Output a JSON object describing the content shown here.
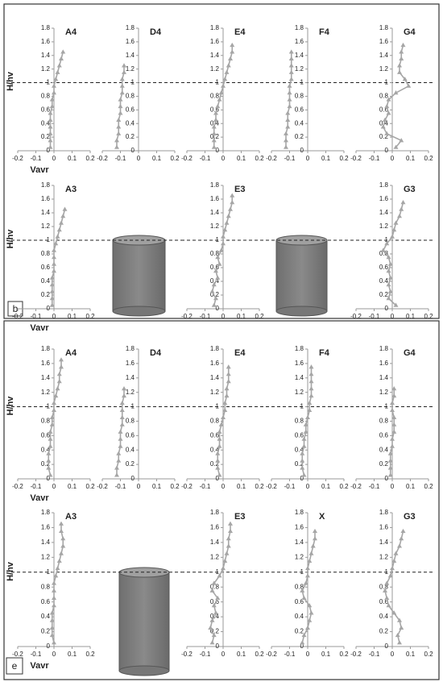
{
  "panel_labels": [
    "b",
    "e"
  ],
  "chart_data": [
    {
      "type": "line",
      "title": "A4",
      "xlabel": "Vavr",
      "ylabel": "H/hv",
      "xlim": [
        -0.2,
        0.2
      ],
      "ylim": [
        0,
        1.8
      ],
      "xticks": [
        -0.2,
        -0.1,
        0,
        0.1,
        0.2
      ],
      "yticks": [
        0,
        0.2,
        0.4,
        0.6,
        0.8,
        1,
        1.2,
        1.4,
        1.6,
        1.8
      ],
      "hline": 1,
      "series": [
        {
          "color": "#a6a6a6",
          "x": [
            -0.02,
            -0.02,
            -0.02,
            -0.02,
            -0.02,
            -0.02,
            -0.01,
            -0.01,
            0,
            0,
            0.01,
            0.02,
            0.03,
            0.04,
            0.05
          ],
          "y": [
            0.05,
            0.15,
            0.25,
            0.35,
            0.45,
            0.55,
            0.65,
            0.75,
            0.85,
            0.95,
            1.05,
            1.15,
            1.25,
            1.35,
            1.45
          ]
        }
      ]
    },
    {
      "type": "line",
      "title": "D4",
      "xlim": [
        -0.2,
        0.2
      ],
      "ylim": [
        0,
        1.8
      ],
      "xticks": [
        -0.2,
        -0.1,
        0,
        0.1,
        0.2
      ],
      "yticks": [
        0,
        0.2,
        0.4,
        0.6,
        0.8,
        1,
        1.2,
        1.4,
        1.6,
        1.8
      ],
      "hline": 1,
      "series": [
        {
          "color": "#a6a6a6",
          "x": [
            -0.12,
            -0.12,
            -0.11,
            -0.11,
            -0.11,
            -0.1,
            -0.1,
            -0.1,
            -0.09,
            -0.09,
            -0.09,
            -0.08,
            -0.08
          ],
          "y": [
            0.05,
            0.15,
            0.25,
            0.35,
            0.45,
            0.55,
            0.65,
            0.75,
            0.85,
            0.95,
            1.05,
            1.15,
            1.25
          ]
        }
      ]
    },
    {
      "type": "line",
      "title": "E4",
      "xlim": [
        -0.2,
        0.2
      ],
      "ylim": [
        0,
        1.8
      ],
      "xticks": [
        -0.2,
        -0.1,
        0,
        0.1,
        0.2
      ],
      "yticks": [
        0,
        0.2,
        0.4,
        0.6,
        0.8,
        1,
        1.2,
        1.4,
        1.6,
        1.8
      ],
      "hline": 1,
      "series": [
        {
          "color": "#a6a6a6",
          "x": [
            -0.05,
            -0.05,
            -0.05,
            -0.05,
            -0.04,
            -0.04,
            -0.03,
            -0.02,
            -0.01,
            0,
            0.01,
            0.02,
            0.03,
            0.04,
            0.05,
            0.05
          ],
          "y": [
            0.05,
            0.15,
            0.25,
            0.35,
            0.45,
            0.55,
            0.65,
            0.75,
            0.85,
            0.95,
            1.05,
            1.15,
            1.25,
            1.35,
            1.45,
            1.55
          ]
        }
      ]
    },
    {
      "type": "line",
      "title": "F4",
      "xlim": [
        -0.2,
        0.2
      ],
      "ylim": [
        0,
        1.8
      ],
      "xticks": [
        -0.2,
        -0.1,
        0,
        0.1,
        0.2
      ],
      "yticks": [
        0,
        0.2,
        0.4,
        0.6,
        0.8,
        1,
        1.2,
        1.4,
        1.6,
        1.8
      ],
      "hline": 1,
      "series": [
        {
          "color": "#a6a6a6",
          "x": [
            -0.12,
            -0.12,
            -0.12,
            -0.11,
            -0.11,
            -0.11,
            -0.1,
            -0.1,
            -0.1,
            -0.1,
            -0.09,
            -0.09,
            -0.09,
            -0.09,
            -0.09
          ],
          "y": [
            0.05,
            0.15,
            0.25,
            0.35,
            0.45,
            0.55,
            0.65,
            0.75,
            0.85,
            0.95,
            1.05,
            1.15,
            1.25,
            1.35,
            1.45
          ]
        }
      ]
    },
    {
      "type": "line",
      "title": "G4",
      "xlim": [
        -0.2,
        0.2
      ],
      "ylim": [
        0,
        1.8
      ],
      "xticks": [
        -0.2,
        -0.1,
        0,
        0.1,
        0.2
      ],
      "yticks": [
        0,
        0.2,
        0.4,
        0.6,
        0.8,
        1,
        1.2,
        1.4,
        1.6,
        1.8
      ],
      "hline": 1,
      "series": [
        {
          "color": "#a6a6a6",
          "x": [
            0.02,
            0.05,
            -0.03,
            -0.05,
            -0.04,
            -0.02,
            -0.03,
            -0.02,
            0.02,
            0.09,
            0.07,
            0.04,
            0.04,
            0.05,
            0.05,
            0.06
          ],
          "y": [
            0.05,
            0.15,
            0.25,
            0.35,
            0.45,
            0.55,
            0.65,
            0.75,
            0.85,
            0.95,
            1.05,
            1.15,
            1.25,
            1.35,
            1.45,
            1.55
          ]
        }
      ]
    },
    {
      "type": "line",
      "title": "A3",
      "xlabel": "Vavr",
      "ylabel": "H/hv",
      "xlim": [
        -0.2,
        0.2
      ],
      "ylim": [
        0,
        1.8
      ],
      "xticks": [
        -0.2,
        -0.1,
        0,
        0.1,
        0.2
      ],
      "yticks": [
        0,
        0.2,
        0.4,
        0.6,
        0.8,
        1,
        1.2,
        1.4,
        1.6,
        1.8
      ],
      "hline": 1,
      "series": [
        {
          "color": "#a6a6a6",
          "x": [
            -0.01,
            -0.01,
            -0.01,
            -0.01,
            -0.01,
            0,
            0,
            0,
            0,
            0.01,
            0.02,
            0.03,
            0.04,
            0.05,
            0.06
          ],
          "y": [
            0.05,
            0.15,
            0.25,
            0.35,
            0.45,
            0.55,
            0.65,
            0.75,
            0.85,
            0.95,
            1.05,
            1.15,
            1.25,
            1.35,
            1.45
          ]
        }
      ]
    },
    {
      "type": "line",
      "title": "E3",
      "xlim": [
        -0.2,
        0.2
      ],
      "ylim": [
        0,
        1.8
      ],
      "xticks": [
        -0.2,
        -0.1,
        0,
        0.1,
        0.2
      ],
      "yticks": [
        0,
        0.2,
        0.4,
        0.6,
        0.8,
        1,
        1.2,
        1.4,
        1.6,
        1.8
      ],
      "hline": 1,
      "series": [
        {
          "color": "#a6a6a6",
          "x": [
            -0.05,
            -0.04,
            -0.06,
            -0.05,
            -0.03,
            -0.04,
            -0.02,
            -0.03,
            -0.01,
            0,
            0,
            0.01,
            0.02,
            0.03,
            0.04,
            0.05,
            0.05
          ],
          "y": [
            0.05,
            0.15,
            0.25,
            0.35,
            0.45,
            0.55,
            0.65,
            0.75,
            0.85,
            0.95,
            1.05,
            1.15,
            1.25,
            1.35,
            1.45,
            1.55,
            1.65
          ]
        }
      ]
    },
    {
      "type": "line",
      "title": "G3",
      "xlim": [
        -0.2,
        0.2
      ],
      "ylim": [
        0,
        1.8
      ],
      "xticks": [
        -0.2,
        -0.1,
        0,
        0.1,
        0.2
      ],
      "yticks": [
        0,
        0.2,
        0.4,
        0.6,
        0.8,
        1,
        1.2,
        1.4,
        1.6,
        1.8
      ],
      "hline": 1,
      "series": [
        {
          "color": "#a6a6a6",
          "x": [
            0.02,
            -0.02,
            -0.01,
            -0.02,
            -0.01,
            -0.02,
            -0.01,
            -0.02,
            -0.05,
            -0.03,
            0,
            0.01,
            0.02,
            0.04,
            0.05,
            0.06
          ],
          "y": [
            0.05,
            0.15,
            0.25,
            0.35,
            0.45,
            0.55,
            0.65,
            0.75,
            0.85,
            0.95,
            1.05,
            1.15,
            1.25,
            1.35,
            1.45,
            1.55
          ]
        }
      ]
    },
    {
      "type": "line",
      "title": "A4",
      "xlabel": "Vavr",
      "ylabel": "H/hv",
      "xlim": [
        -0.2,
        0.2
      ],
      "ylim": [
        0,
        1.8
      ],
      "xticks": [
        -0.2,
        -0.1,
        0,
        0.1,
        0.2
      ],
      "yticks": [
        0,
        0.2,
        0.4,
        0.6,
        0.8,
        1,
        1.2,
        1.4,
        1.6,
        1.8
      ],
      "hline": 1,
      "series": [
        {
          "color": "#a6a6a6",
          "x": [
            -0.02,
            -0.03,
            -0.03,
            -0.03,
            -0.02,
            -0.02,
            -0.02,
            -0.01,
            -0.01,
            0,
            0,
            0.01,
            0.02,
            0.03,
            0.03,
            0.04,
            0.04
          ],
          "y": [
            0.05,
            0.15,
            0.25,
            0.35,
            0.45,
            0.55,
            0.65,
            0.75,
            0.85,
            0.95,
            1.05,
            1.15,
            1.25,
            1.35,
            1.45,
            1.55,
            1.65
          ]
        }
      ]
    },
    {
      "type": "line",
      "title": "D4",
      "xlim": [
        -0.2,
        0.2
      ],
      "ylim": [
        0,
        1.8
      ],
      "xticks": [
        -0.2,
        -0.1,
        0,
        0.1,
        0.2
      ],
      "yticks": [
        0,
        0.2,
        0.4,
        0.6,
        0.8,
        1,
        1.2,
        1.4,
        1.6,
        1.8
      ],
      "hline": 1,
      "series": [
        {
          "color": "#a6a6a6",
          "x": [
            -0.12,
            -0.12,
            -0.11,
            -0.11,
            -0.1,
            -0.1,
            -0.1,
            -0.09,
            -0.09,
            -0.09,
            -0.09,
            -0.08,
            -0.08
          ],
          "y": [
            0.05,
            0.15,
            0.25,
            0.35,
            0.45,
            0.55,
            0.65,
            0.75,
            0.85,
            0.95,
            1.05,
            1.15,
            1.25
          ]
        }
      ]
    },
    {
      "type": "line",
      "title": "E4",
      "xlim": [
        -0.2,
        0.2
      ],
      "ylim": [
        0,
        1.8
      ],
      "xticks": [
        -0.2,
        -0.1,
        0,
        0.1,
        0.2
      ],
      "yticks": [
        0,
        0.2,
        0.4,
        0.6,
        0.8,
        1,
        1.2,
        1.4,
        1.6,
        1.8
      ],
      "hline": 1,
      "series": [
        {
          "color": "#a6a6a6",
          "x": [
            -0.02,
            -0.03,
            -0.03,
            -0.03,
            -0.02,
            -0.02,
            -0.02,
            -0.01,
            0,
            0.01,
            0.01,
            0.02,
            0.02,
            0.03,
            0.03,
            0.03
          ],
          "y": [
            0.05,
            0.15,
            0.25,
            0.35,
            0.45,
            0.55,
            0.65,
            0.75,
            0.85,
            0.95,
            1.05,
            1.15,
            1.25,
            1.35,
            1.45,
            1.55
          ]
        }
      ]
    },
    {
      "type": "line",
      "title": "F4",
      "xlim": [
        -0.2,
        0.2
      ],
      "ylim": [
        0,
        1.8
      ],
      "xticks": [
        -0.2,
        -0.1,
        0,
        0.1,
        0.2
      ],
      "yticks": [
        0,
        0.2,
        0.4,
        0.6,
        0.8,
        1,
        1.2,
        1.4,
        1.6,
        1.8
      ],
      "hline": 1,
      "series": [
        {
          "color": "#a6a6a6",
          "x": [
            -0.02,
            -0.03,
            -0.03,
            -0.03,
            -0.02,
            -0.02,
            -0.01,
            -0.01,
            0,
            0.01,
            0.01,
            0.02,
            0.02,
            0.02,
            0.02,
            0.02
          ],
          "y": [
            0.05,
            0.15,
            0.25,
            0.35,
            0.45,
            0.55,
            0.65,
            0.75,
            0.85,
            0.95,
            1.05,
            1.15,
            1.25,
            1.35,
            1.45,
            1.55
          ]
        }
      ]
    },
    {
      "type": "line",
      "title": "G4",
      "xlim": [
        -0.2,
        0.2
      ],
      "ylim": [
        0,
        1.8
      ],
      "xticks": [
        -0.2,
        -0.1,
        0,
        0.1,
        0.2
      ],
      "yticks": [
        0,
        0.2,
        0.4,
        0.6,
        0.8,
        1,
        1.2,
        1.4,
        1.6,
        1.8
      ],
      "hline": 1,
      "series": [
        {
          "color": "#a6a6a6",
          "x": [
            -0.01,
            -0.01,
            -0.01,
            -0.01,
            0,
            0,
            0.01,
            0.01,
            0.01,
            0,
            0,
            0.01,
            0.01
          ],
          "y": [
            0.05,
            0.15,
            0.25,
            0.35,
            0.45,
            0.55,
            0.65,
            0.75,
            0.85,
            0.95,
            1.05,
            1.15,
            1.25
          ]
        }
      ]
    },
    {
      "type": "line",
      "title": "A3",
      "xlabel": "Vavr",
      "ylabel": "H/hv",
      "xlim": [
        -0.2,
        0.2
      ],
      "ylim": [
        0,
        1.8
      ],
      "xticks": [
        -0.2,
        -0.1,
        0,
        0.1,
        0.2
      ],
      "yticks": [
        0,
        0.2,
        0.4,
        0.6,
        0.8,
        1,
        1.2,
        1.4,
        1.6,
        1.8
      ],
      "hline": 1,
      "series": [
        {
          "color": "#a6a6a6",
          "x": [
            0,
            -0.01,
            -0.01,
            -0.01,
            -0.01,
            0,
            0,
            0,
            0,
            0.01,
            0.02,
            0.03,
            0.04,
            0.05,
            0.05,
            0.04,
            0.04
          ],
          "y": [
            0.05,
            0.15,
            0.25,
            0.35,
            0.45,
            0.55,
            0.65,
            0.75,
            0.85,
            0.95,
            1.05,
            1.15,
            1.25,
            1.35,
            1.45,
            1.55,
            1.65
          ]
        }
      ]
    },
    {
      "type": "line",
      "title": "E3",
      "xlim": [
        -0.2,
        0.2
      ],
      "ylim": [
        0,
        1.8
      ],
      "xticks": [
        -0.2,
        -0.1,
        0,
        0.1,
        0.2
      ],
      "yticks": [
        0,
        0.2,
        0.4,
        0.6,
        0.8,
        1,
        1.2,
        1.4,
        1.6,
        1.8
      ],
      "hline": 1,
      "series": [
        {
          "color": "#a6a6a6",
          "x": [
            -0.06,
            -0.05,
            -0.07,
            -0.06,
            -0.04,
            -0.05,
            -0.03,
            -0.06,
            -0.05,
            -0.02,
            0,
            0.01,
            0.02,
            0.03,
            0.03,
            0.04,
            0.04
          ],
          "y": [
            0.05,
            0.15,
            0.25,
            0.35,
            0.45,
            0.55,
            0.65,
            0.75,
            0.85,
            0.95,
            1.05,
            1.15,
            1.25,
            1.35,
            1.45,
            1.55,
            1.65
          ]
        }
      ]
    },
    {
      "type": "line",
      "title": "X",
      "xlim": [
        -0.2,
        0.2
      ],
      "ylim": [
        0,
        1.8
      ],
      "xticks": [
        -0.2,
        -0.1,
        0,
        0.1,
        0.2
      ],
      "yticks": [
        0,
        0.2,
        0.4,
        0.6,
        0.8,
        1,
        1.2,
        1.4,
        1.6,
        1.8
      ],
      "hline": 1,
      "series": [
        {
          "color": "#a6a6a6",
          "x": [
            -0.03,
            -0.02,
            0,
            0.01,
            0.02,
            0.01,
            -0.02,
            -0.03,
            -0.01,
            0,
            0,
            0.01,
            0.02,
            0.03,
            0.04,
            0.04
          ],
          "y": [
            0.05,
            0.15,
            0.25,
            0.35,
            0.45,
            0.55,
            0.65,
            0.75,
            0.85,
            0.95,
            1.05,
            1.15,
            1.25,
            1.35,
            1.45,
            1.55
          ]
        }
      ]
    },
    {
      "type": "line",
      "title": "G3",
      "xlim": [
        -0.2,
        0.2
      ],
      "ylim": [
        0,
        1.8
      ],
      "xticks": [
        -0.2,
        -0.1,
        0,
        0.1,
        0.2
      ],
      "yticks": [
        0,
        0.2,
        0.4,
        0.6,
        0.8,
        1,
        1.2,
        1.4,
        1.6,
        1.8
      ],
      "hline": 1,
      "series": [
        {
          "color": "#a6a6a6",
          "x": [
            0.04,
            0.03,
            0.05,
            0.04,
            0.01,
            -0.02,
            -0.03,
            -0.04,
            -0.03,
            -0.01,
            0,
            0.01,
            0.02,
            0.04,
            0.05,
            0.06
          ],
          "y": [
            0.05,
            0.15,
            0.25,
            0.35,
            0.45,
            0.55,
            0.65,
            0.75,
            0.85,
            0.95,
            1.05,
            1.15,
            1.25,
            1.35,
            1.45,
            1.55
          ]
        }
      ]
    }
  ]
}
